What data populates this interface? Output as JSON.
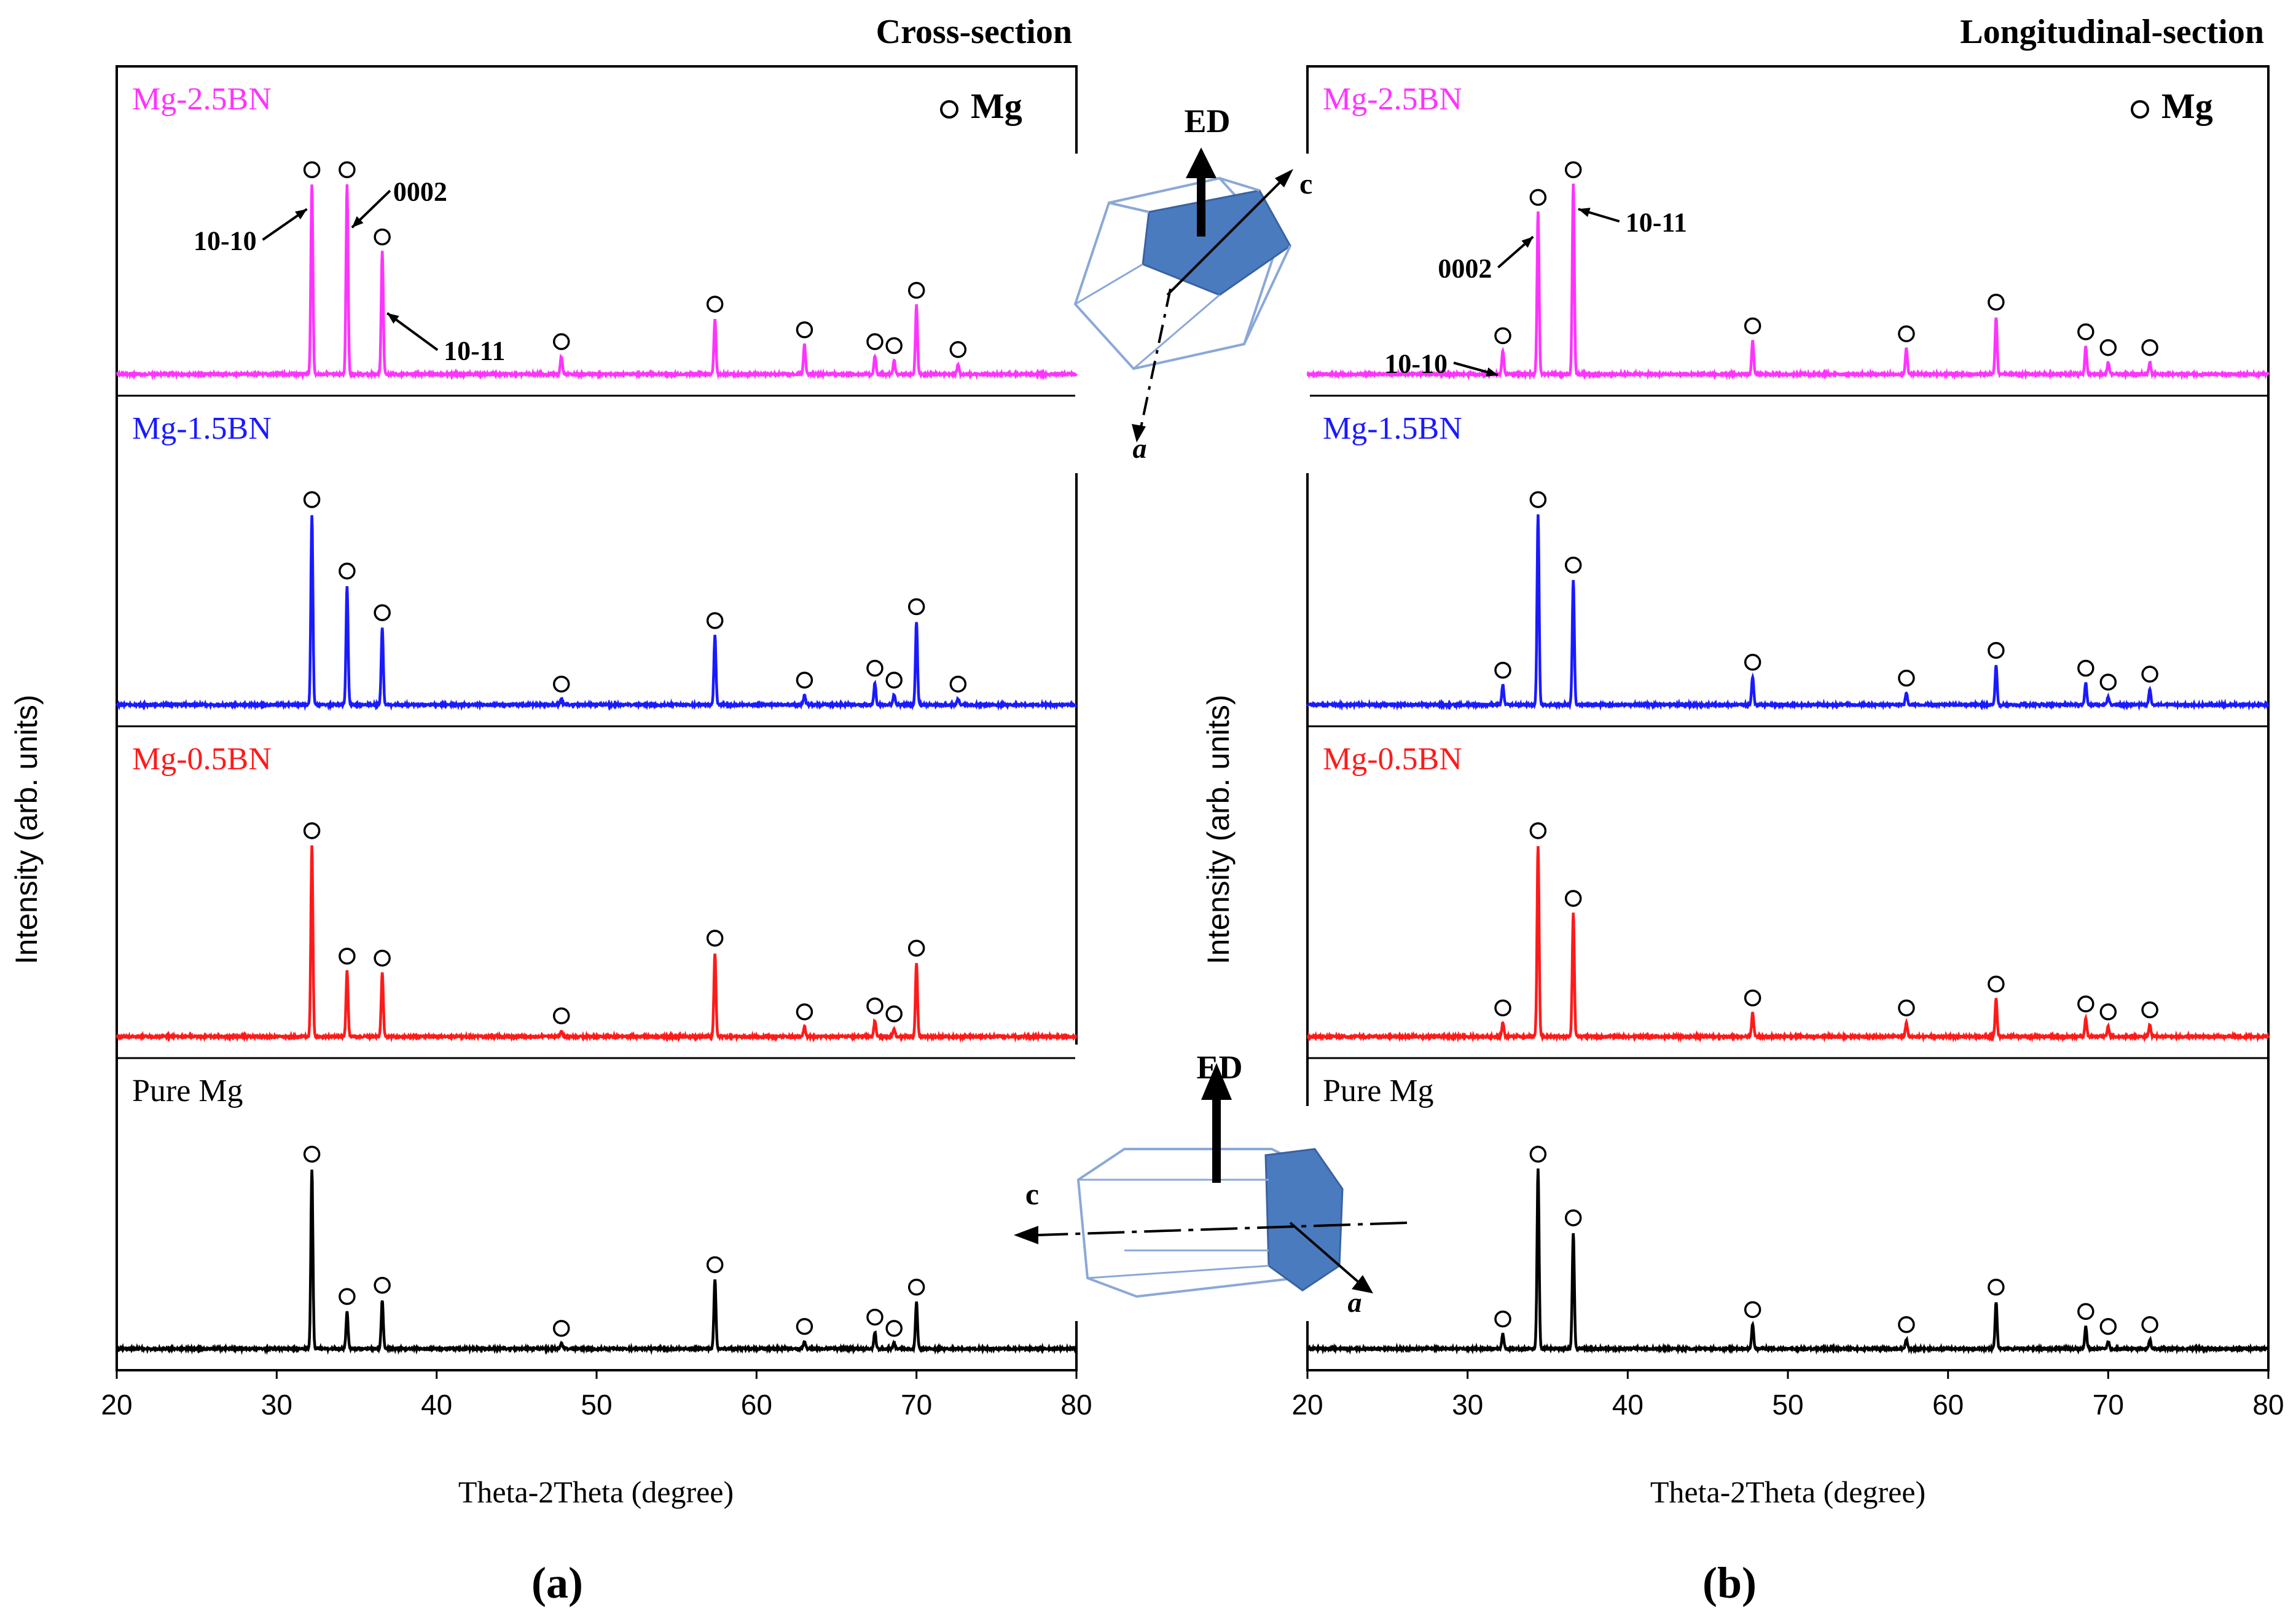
{
  "figure": {
    "panels": [
      {
        "label": "(a)",
        "title": "Cross-section",
        "section": "cross"
      },
      {
        "label": "(b)",
        "title": "Longitudinal-section",
        "section": "longitudinal"
      }
    ],
    "legend": "Mg",
    "ylabel": "Intensity (arb. units)",
    "xlabel": "Theta-2Theta (degree)",
    "ed_label": "ED",
    "axis_c": "c",
    "axis_a": "a",
    "colors": {
      "Mg-2.5BN": "#ff33ff",
      "Mg-1.5BN": "#1a1aff",
      "Mg-0.5BN": "#ff1a1a",
      "Pure Mg": "#000000"
    }
  },
  "chart_data": [
    {
      "type": "line",
      "title": "Cross-section",
      "panel": "(a)",
      "xlabel": "Theta-2Theta (degree)",
      "ylabel": "Intensity (arb. units)",
      "xlim": [
        20,
        80
      ],
      "xticks": [
        20,
        30,
        40,
        50,
        60,
        70,
        80
      ],
      "ylim": [
        0,
        1
      ],
      "series": [
        {
          "name": "Mg-2.5BN",
          "peaks": [
            [
              32.2,
              0.96
            ],
            [
              34.4,
              0.96
            ],
            [
              36.6,
              0.62
            ],
            [
              47.8,
              0.09
            ],
            [
              57.4,
              0.28
            ],
            [
              63.0,
              0.15
            ],
            [
              67.4,
              0.09
            ],
            [
              68.6,
              0.07
            ],
            [
              70.0,
              0.35
            ],
            [
              72.6,
              0.05
            ]
          ],
          "annotations": [
            {
              "text": "10-10",
              "x": 32.2
            },
            {
              "text": "0002",
              "x": 34.4
            },
            {
              "text": "10-11",
              "x": 36.6
            }
          ]
        },
        {
          "name": "Mg-1.5BN",
          "peaks": [
            [
              32.2,
              0.96
            ],
            [
              34.4,
              0.6
            ],
            [
              36.6,
              0.39
            ],
            [
              47.8,
              0.03
            ],
            [
              57.4,
              0.35
            ],
            [
              63.0,
              0.05
            ],
            [
              67.4,
              0.11
            ],
            [
              68.6,
              0.05
            ],
            [
              70.0,
              0.42
            ],
            [
              72.6,
              0.03
            ]
          ]
        },
        {
          "name": "Mg-0.5BN",
          "peaks": [
            [
              32.2,
              0.96
            ],
            [
              34.4,
              0.33
            ],
            [
              36.6,
              0.32
            ],
            [
              47.8,
              0.03
            ],
            [
              57.4,
              0.42
            ],
            [
              63.0,
              0.05
            ],
            [
              67.4,
              0.08
            ],
            [
              68.6,
              0.04
            ],
            [
              70.0,
              0.37
            ]
          ]
        },
        {
          "name": "Pure Mg",
          "peaks": [
            [
              32.2,
              0.96
            ],
            [
              34.4,
              0.2
            ],
            [
              36.6,
              0.26
            ],
            [
              47.8,
              0.03
            ],
            [
              57.4,
              0.37
            ],
            [
              63.0,
              0.04
            ],
            [
              67.4,
              0.09
            ],
            [
              68.6,
              0.03
            ],
            [
              70.0,
              0.25
            ]
          ]
        }
      ]
    },
    {
      "type": "line",
      "title": "Longitudinal-section",
      "panel": "(b)",
      "xlabel": "Theta-2Theta (degree)",
      "ylabel": "Intensity (arb. units)",
      "xlim": [
        20,
        80
      ],
      "xticks": [
        20,
        30,
        40,
        50,
        60,
        70,
        80
      ],
      "ylim": [
        0,
        1
      ],
      "series": [
        {
          "name": "Mg-2.5BN",
          "peaks": [
            [
              32.2,
              0.12
            ],
            [
              34.4,
              0.82
            ],
            [
              36.6,
              0.96
            ],
            [
              47.8,
              0.17
            ],
            [
              57.4,
              0.13
            ],
            [
              63.0,
              0.29
            ],
            [
              68.6,
              0.14
            ],
            [
              70.0,
              0.06
            ],
            [
              72.6,
              0.06
            ]
          ],
          "annotations": [
            {
              "text": "10-10",
              "x": 32.2
            },
            {
              "text": "0002",
              "x": 34.4
            },
            {
              "text": "10-11",
              "x": 36.6
            }
          ]
        },
        {
          "name": "Mg-1.5BN",
          "peaks": [
            [
              32.2,
              0.1
            ],
            [
              34.4,
              0.96
            ],
            [
              36.6,
              0.63
            ],
            [
              47.8,
              0.14
            ],
            [
              57.4,
              0.06
            ],
            [
              63.0,
              0.2
            ],
            [
              68.6,
              0.11
            ],
            [
              70.0,
              0.04
            ],
            [
              72.6,
              0.08
            ]
          ]
        },
        {
          "name": "Mg-0.5BN",
          "peaks": [
            [
              32.2,
              0.07
            ],
            [
              34.4,
              0.96
            ],
            [
              36.6,
              0.62
            ],
            [
              47.8,
              0.12
            ],
            [
              57.4,
              0.07
            ],
            [
              63.0,
              0.19
            ],
            [
              68.6,
              0.09
            ],
            [
              70.0,
              0.05
            ],
            [
              72.6,
              0.06
            ]
          ]
        },
        {
          "name": "Pure Mg",
          "peaks": [
            [
              32.2,
              0.08
            ],
            [
              34.4,
              0.96
            ],
            [
              36.6,
              0.62
            ],
            [
              47.8,
              0.13
            ],
            [
              57.4,
              0.05
            ],
            [
              63.0,
              0.25
            ],
            [
              68.6,
              0.12
            ],
            [
              70.0,
              0.04
            ],
            [
              72.6,
              0.05
            ]
          ]
        }
      ]
    }
  ]
}
